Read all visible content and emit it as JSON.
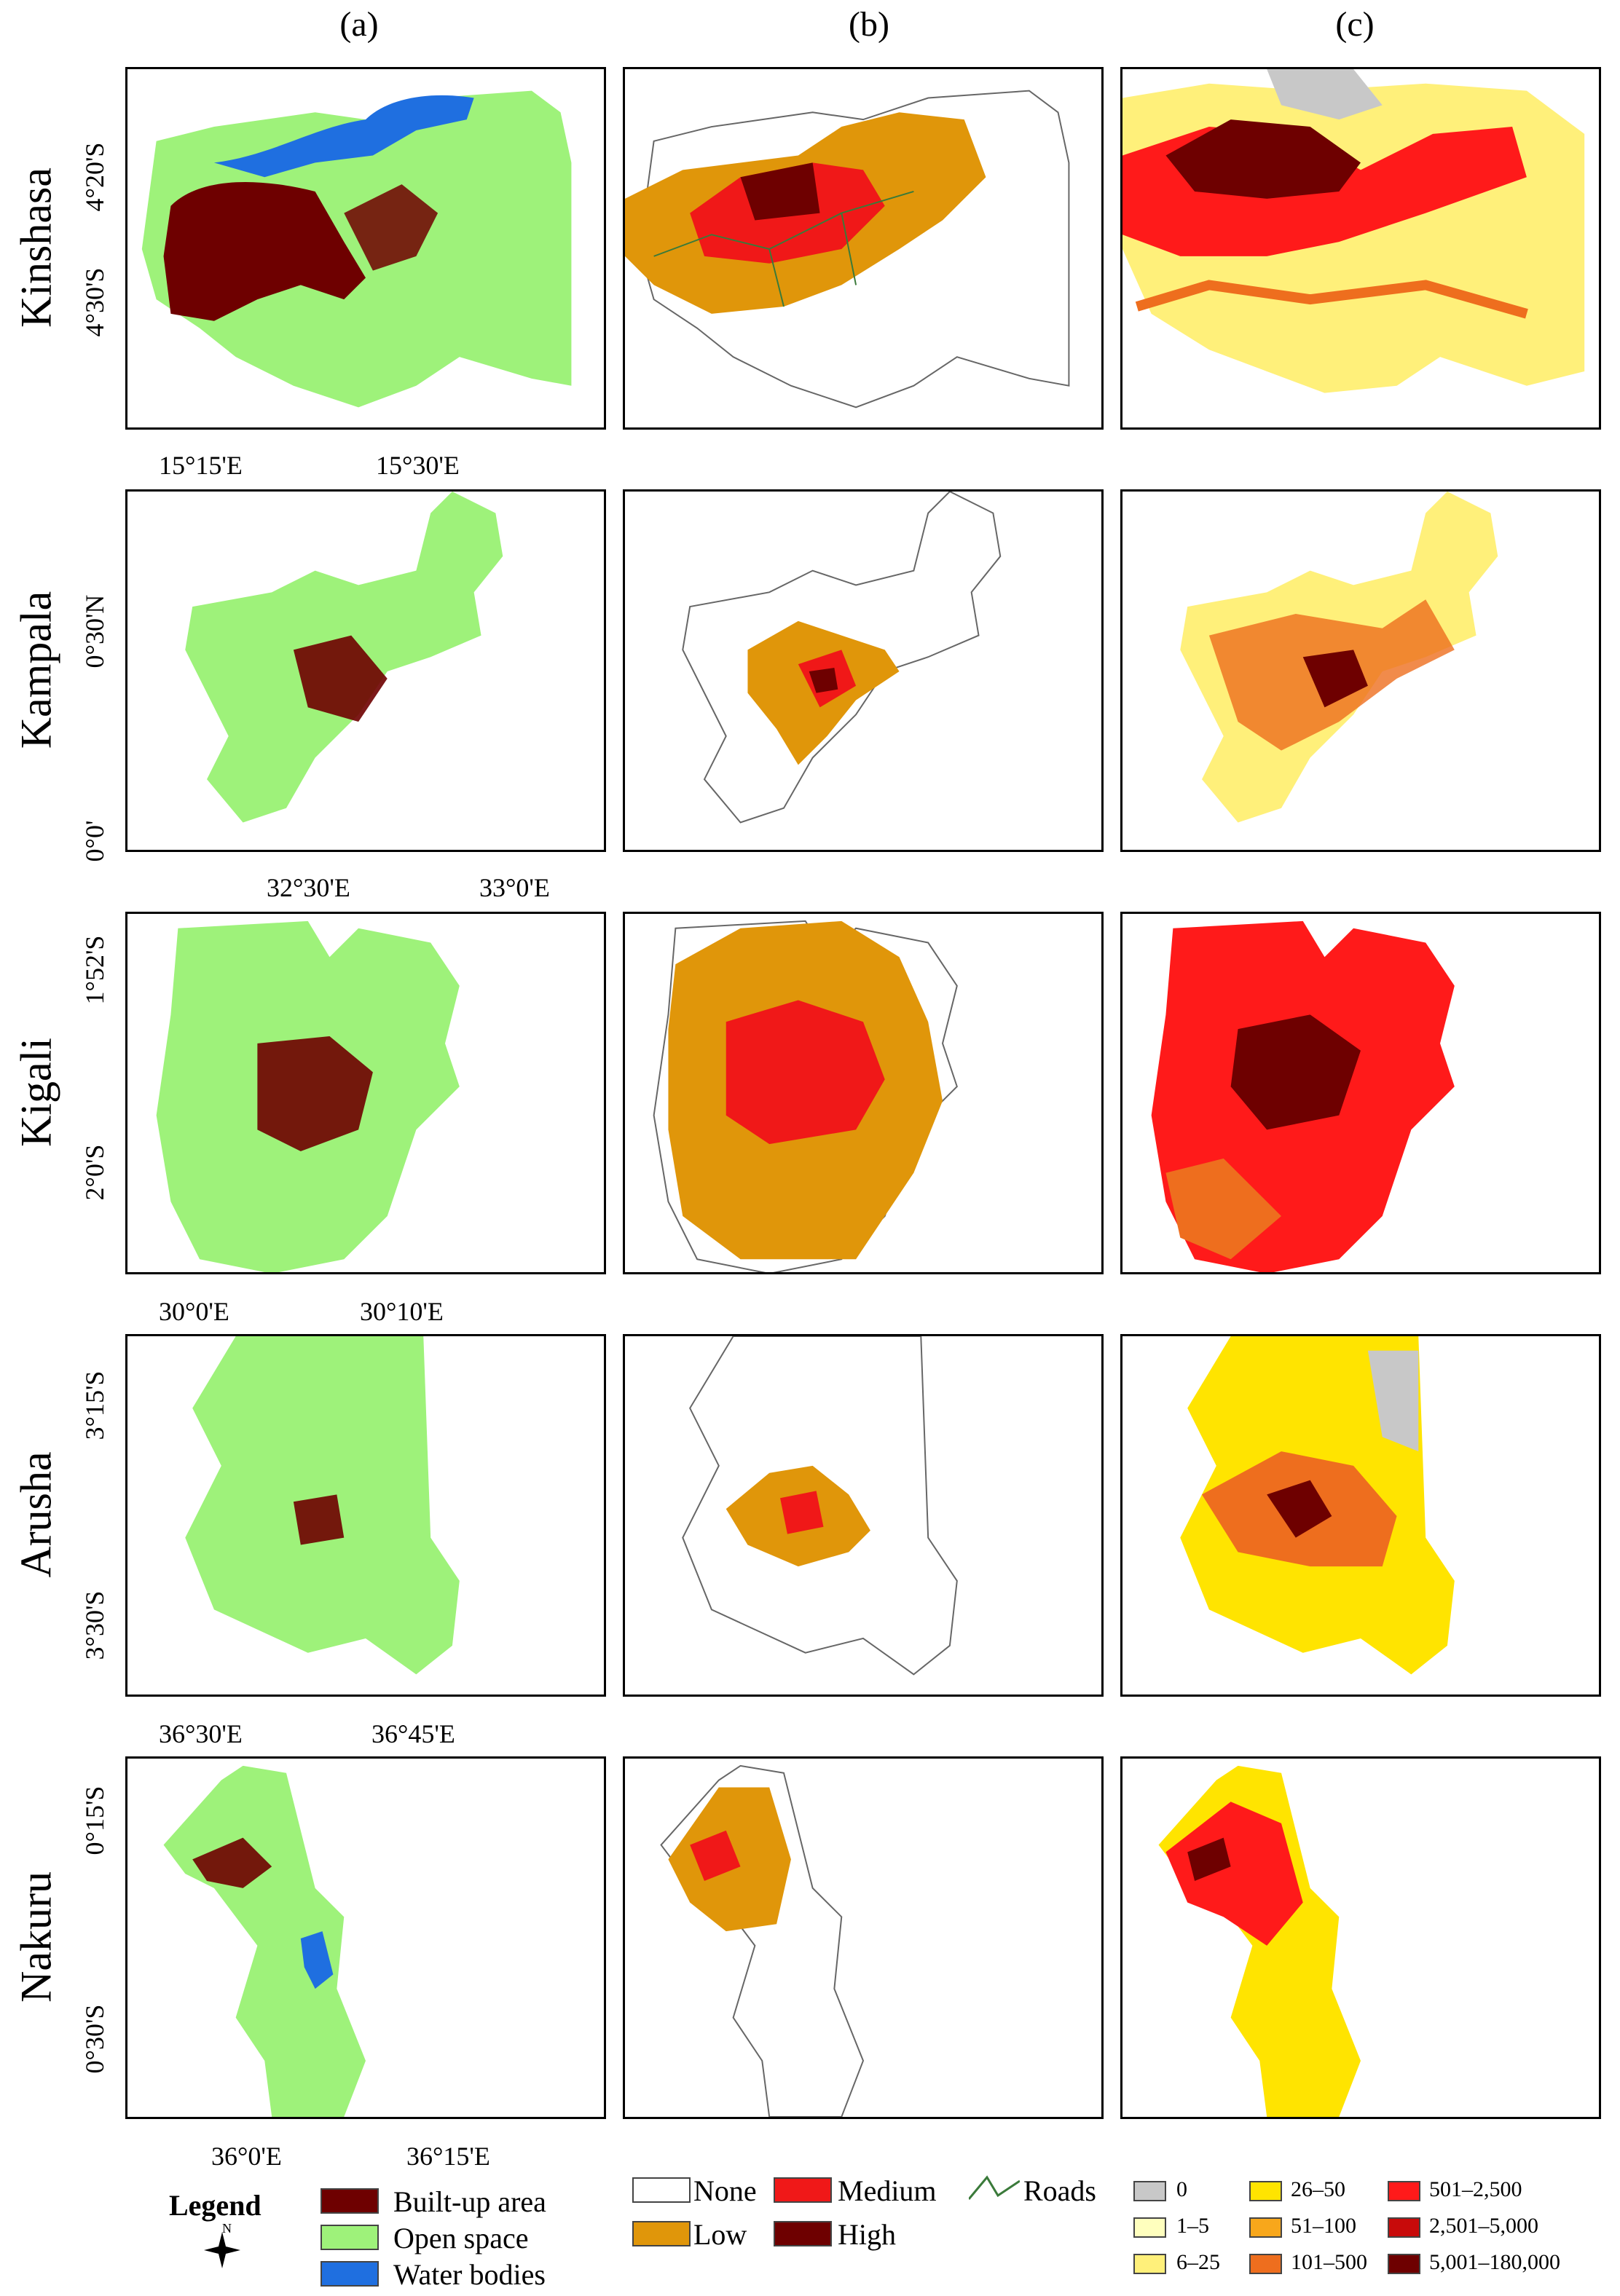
{
  "columns": [
    "(a)",
    "(b)",
    "(c)"
  ],
  "cities": [
    {
      "name": "Kinshasa",
      "lat_ticks": [
        "4°20'S",
        "4°30'S"
      ],
      "lon_ticks": [
        "15°15'E",
        "15°30'E"
      ]
    },
    {
      "name": "Kampala",
      "lat_ticks": [
        "0°30'N",
        "0°0'"
      ],
      "lon_ticks": [
        "32°30'E",
        "33°0'E"
      ]
    },
    {
      "name": "Kigali",
      "lat_ticks": [
        "1°52'S",
        "2°0'S"
      ],
      "lon_ticks": [
        "30°0'E",
        "30°10'E"
      ]
    },
    {
      "name": "Arusha",
      "lat_ticks": [
        "3°15'S",
        "3°30'S"
      ],
      "lon_ticks": [
        "36°30'E",
        "36°45'E"
      ]
    },
    {
      "name": "Nakuru",
      "lat_ticks": [
        "0°15'S",
        "0°30'S"
      ],
      "lon_ticks": [
        "36°0'E",
        "36°15'E"
      ]
    }
  ],
  "legend": {
    "title": "Legend",
    "north_label": "N",
    "land_cover": [
      {
        "label": "Built-up area",
        "color": "#6e0000"
      },
      {
        "label": "Open space",
        "color": "#9ef27a"
      },
      {
        "label": "Water bodies",
        "color": "#1f6fe0"
      }
    ],
    "density": [
      {
        "label": "None",
        "color": "#ffffff"
      },
      {
        "label": "Medium",
        "color": "#f01818"
      },
      {
        "label": "Low",
        "color": "#e0960a"
      },
      {
        "label": "High",
        "color": "#6e0000"
      }
    ],
    "roads_label": "Roads",
    "roads_color": "#3a7a3a",
    "population": [
      {
        "label": "0",
        "color": "#c8c8c8"
      },
      {
        "label": "1–5",
        "color": "#ffffbe"
      },
      {
        "label": "6–25",
        "color": "#fff07a"
      },
      {
        "label": "26–50",
        "color": "#ffe400"
      },
      {
        "label": "51–100",
        "color": "#f8a71b"
      },
      {
        "label": "101–500",
        "color": "#ee6e1e"
      },
      {
        "label": "501–2,500",
        "color": "#ff1a1a"
      },
      {
        "label": "2,501–5,000",
        "color": "#c80a0a"
      },
      {
        "label": "5,001–180,000",
        "color": "#6e0000"
      }
    ]
  }
}
